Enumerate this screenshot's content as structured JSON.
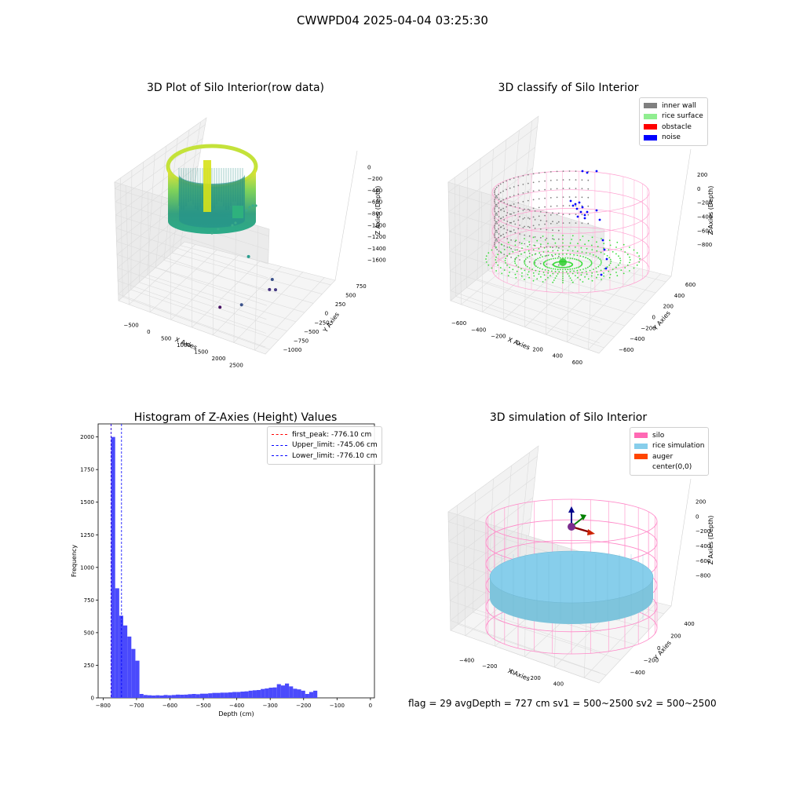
{
  "suptitle": "CWWPD04 2025-04-04 03:25:30",
  "footer": "flag = 29  avgDepth = 727 cm  sv1 = 500~2500  sv2 = 500~2500",
  "colors": {
    "viridis_low": "#440154",
    "viridis_mid": "#21918c",
    "viridis_high": "#fde725",
    "inner_wall": "#808080",
    "rice_surface": "#90ee90",
    "obstacle": "#ff0000",
    "noise": "#0000ff",
    "silo": "#ff69b4",
    "rice_simulation": "#87ceeb",
    "auger": "#ff4500",
    "hist_bar": "#4a4afc",
    "first_peak_line": "#ff0000",
    "limit_line": "#0000ff"
  },
  "chart_data": [
    {
      "type": "scatter",
      "subtype": "3d-scatter",
      "title": "3D Plot of Silo Interior(row data)",
      "xlabel": "X Axies",
      "ylabel": "Y Axies",
      "zlabel": "Z Axies (Depth)",
      "xticks": [
        "−500",
        "0",
        "500",
        "1000",
        "1500",
        "2000",
        "2500"
      ],
      "yticks": [
        "−1000",
        "−750",
        "−500",
        "−250",
        "0",
        "250",
        "500",
        "750"
      ],
      "zticks": [
        "−1600",
        "−1400",
        "−1200",
        "−1000",
        "−800",
        "−600",
        "−400",
        "−200",
        "0"
      ],
      "xlim": [
        -700,
        2600
      ],
      "ylim": [
        -1100,
        900
      ],
      "zlim": [
        -1650,
        100
      ],
      "colormap": "viridis",
      "outlier_points": [
        {
          "x": 900,
          "y": 700,
          "z": -1400
        },
        {
          "x": 1500,
          "y": 600,
          "z": -1550
        },
        {
          "x": 1800,
          "y": 300,
          "z": -1500
        },
        {
          "x": 1700,
          "y": 250,
          "z": -1500
        },
        {
          "x": 1400,
          "y": -200,
          "z": -1600
        },
        {
          "x": 1100,
          "y": -450,
          "z": -1600
        }
      ]
    },
    {
      "type": "scatter",
      "subtype": "3d-scatter",
      "title": "3D classify of Silo Interior",
      "xlabel": "X Axies",
      "ylabel": "Y Axies",
      "zlabel": "Z Axies (Depth)",
      "xticks": [
        "−600",
        "−400",
        "−200",
        "0",
        "200",
        "400",
        "600"
      ],
      "yticks": [
        "−600",
        "−400",
        "−200",
        "0",
        "200",
        "400",
        "600"
      ],
      "zticks": [
        "−800",
        "−600",
        "−400",
        "−200",
        "0",
        "200"
      ],
      "legend": [
        "inner wall",
        "rice surface",
        "obstacle",
        "noise"
      ],
      "legend_position": "top-right"
    },
    {
      "type": "bar",
      "subtype": "histogram",
      "title": "Histogram of Z-Axies (Height) Values",
      "xlabel": "Depth (cm)",
      "ylabel": "Frequency",
      "xlim": [
        -815,
        12
      ],
      "ylim": [
        0,
        2100
      ],
      "xticks": [
        -800,
        -700,
        -600,
        -500,
        -400,
        -300,
        -200,
        -100,
        0
      ],
      "yticks": [
        0,
        250,
        500,
        750,
        1000,
        1250,
        1500,
        1750,
        2000
      ],
      "bin_width": 12.1,
      "bin_start": -776.1,
      "values": [
        2000,
        840,
        630,
        555,
        470,
        375,
        285,
        30,
        22,
        20,
        18,
        20,
        18,
        22,
        20,
        22,
        25,
        24,
        25,
        28,
        30,
        28,
        32,
        32,
        35,
        38,
        38,
        40,
        40,
        42,
        45,
        45,
        48,
        50,
        55,
        58,
        60,
        68,
        72,
        78,
        80,
        105,
        95,
        110,
        88,
        70,
        65,
        55,
        30,
        45,
        55
      ],
      "vlines": [
        {
          "label": "first_peak: -776.10 cm",
          "x": -776.1,
          "color": "#ff0000"
        },
        {
          "label": "Upper_limit: -745.06 cm",
          "x": -745.06,
          "color": "#0000ff"
        },
        {
          "label": "Lower_limit: -776.10 cm",
          "x": -776.1,
          "color": "#0000ff"
        }
      ],
      "legend_position": "top-right"
    },
    {
      "type": "scatter",
      "subtype": "3d-wireframe-surface",
      "title": "3D simulation of Silo Interior",
      "xlabel": "X Axies",
      "ylabel": "Y Axies",
      "zlabel": "Z Axies (Depth)",
      "xticks": [
        "−400",
        "−200",
        "0",
        "200",
        "400"
      ],
      "yticks": [
        "−400",
        "−200",
        "0",
        "200",
        "400"
      ],
      "zticks": [
        "−800",
        "−600",
        "−400",
        "−200",
        "0",
        "200"
      ],
      "legend": [
        "silo",
        "rice simulation",
        "auger",
        "center(0,0)"
      ],
      "legend_position": "top-right"
    }
  ]
}
